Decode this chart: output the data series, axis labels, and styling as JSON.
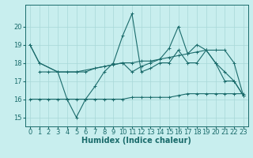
{
  "background_color": "#c8eeee",
  "grid_color": "#a8d8d8",
  "line_color": "#1a6b6b",
  "xlabel": "Humidex (Indice chaleur)",
  "xlabel_fontsize": 7,
  "tick_fontsize": 6,
  "xlim": [
    -0.5,
    23.5
  ],
  "ylim": [
    14.5,
    21.2
  ],
  "yticks": [
    15,
    16,
    17,
    18,
    19,
    20
  ],
  "xticks": [
    0,
    1,
    2,
    3,
    4,
    5,
    6,
    7,
    8,
    9,
    10,
    11,
    12,
    13,
    14,
    15,
    16,
    17,
    18,
    19,
    20,
    21,
    22,
    23
  ],
  "series": [
    {
      "x": [
        0,
        1,
        3,
        4,
        5,
        6,
        7,
        8,
        9,
        10,
        11,
        12,
        13,
        14,
        15,
        16,
        17,
        18,
        19,
        20,
        21,
        22,
        23
      ],
      "y": [
        19,
        18,
        17.5,
        16.0,
        15.0,
        16.0,
        16.7,
        17.5,
        18.0,
        19.5,
        20.7,
        17.5,
        17.7,
        18.0,
        18.0,
        18.7,
        18.0,
        18.0,
        18.7,
        18.0,
        17.0,
        17.0,
        16.2
      ]
    },
    {
      "x": [
        1,
        2,
        3,
        4,
        5,
        6,
        7,
        8,
        9,
        10,
        11,
        12,
        13,
        14,
        15,
        16,
        17,
        18,
        19,
        20,
        21,
        22,
        23
      ],
      "y": [
        17.5,
        17.5,
        17.5,
        17.5,
        17.5,
        17.5,
        17.7,
        17.8,
        17.9,
        18.0,
        18.0,
        18.1,
        18.1,
        18.2,
        18.3,
        18.4,
        18.5,
        18.6,
        18.7,
        18.7,
        18.7,
        18.0,
        16.2
      ]
    },
    {
      "x": [
        0,
        1,
        3,
        5,
        10,
        11,
        12,
        13,
        14,
        15,
        16,
        17,
        18,
        19,
        20,
        21,
        22,
        23
      ],
      "y": [
        19,
        18,
        17.5,
        17.5,
        18.0,
        17.5,
        17.8,
        18.0,
        18.2,
        18.8,
        20.0,
        18.5,
        19.0,
        18.7,
        18.0,
        17.5,
        17.0,
        16.2
      ]
    },
    {
      "x": [
        0,
        1,
        2,
        3,
        4,
        5,
        6,
        7,
        8,
        9,
        10,
        11,
        12,
        13,
        14,
        15,
        16,
        17,
        18,
        19,
        20,
        21,
        22,
        23
      ],
      "y": [
        16.0,
        16.0,
        16.0,
        16.0,
        16.0,
        16.0,
        16.0,
        16.0,
        16.0,
        16.0,
        16.0,
        16.1,
        16.1,
        16.1,
        16.1,
        16.1,
        16.2,
        16.3,
        16.3,
        16.3,
        16.3,
        16.3,
        16.3,
        16.3
      ]
    }
  ]
}
